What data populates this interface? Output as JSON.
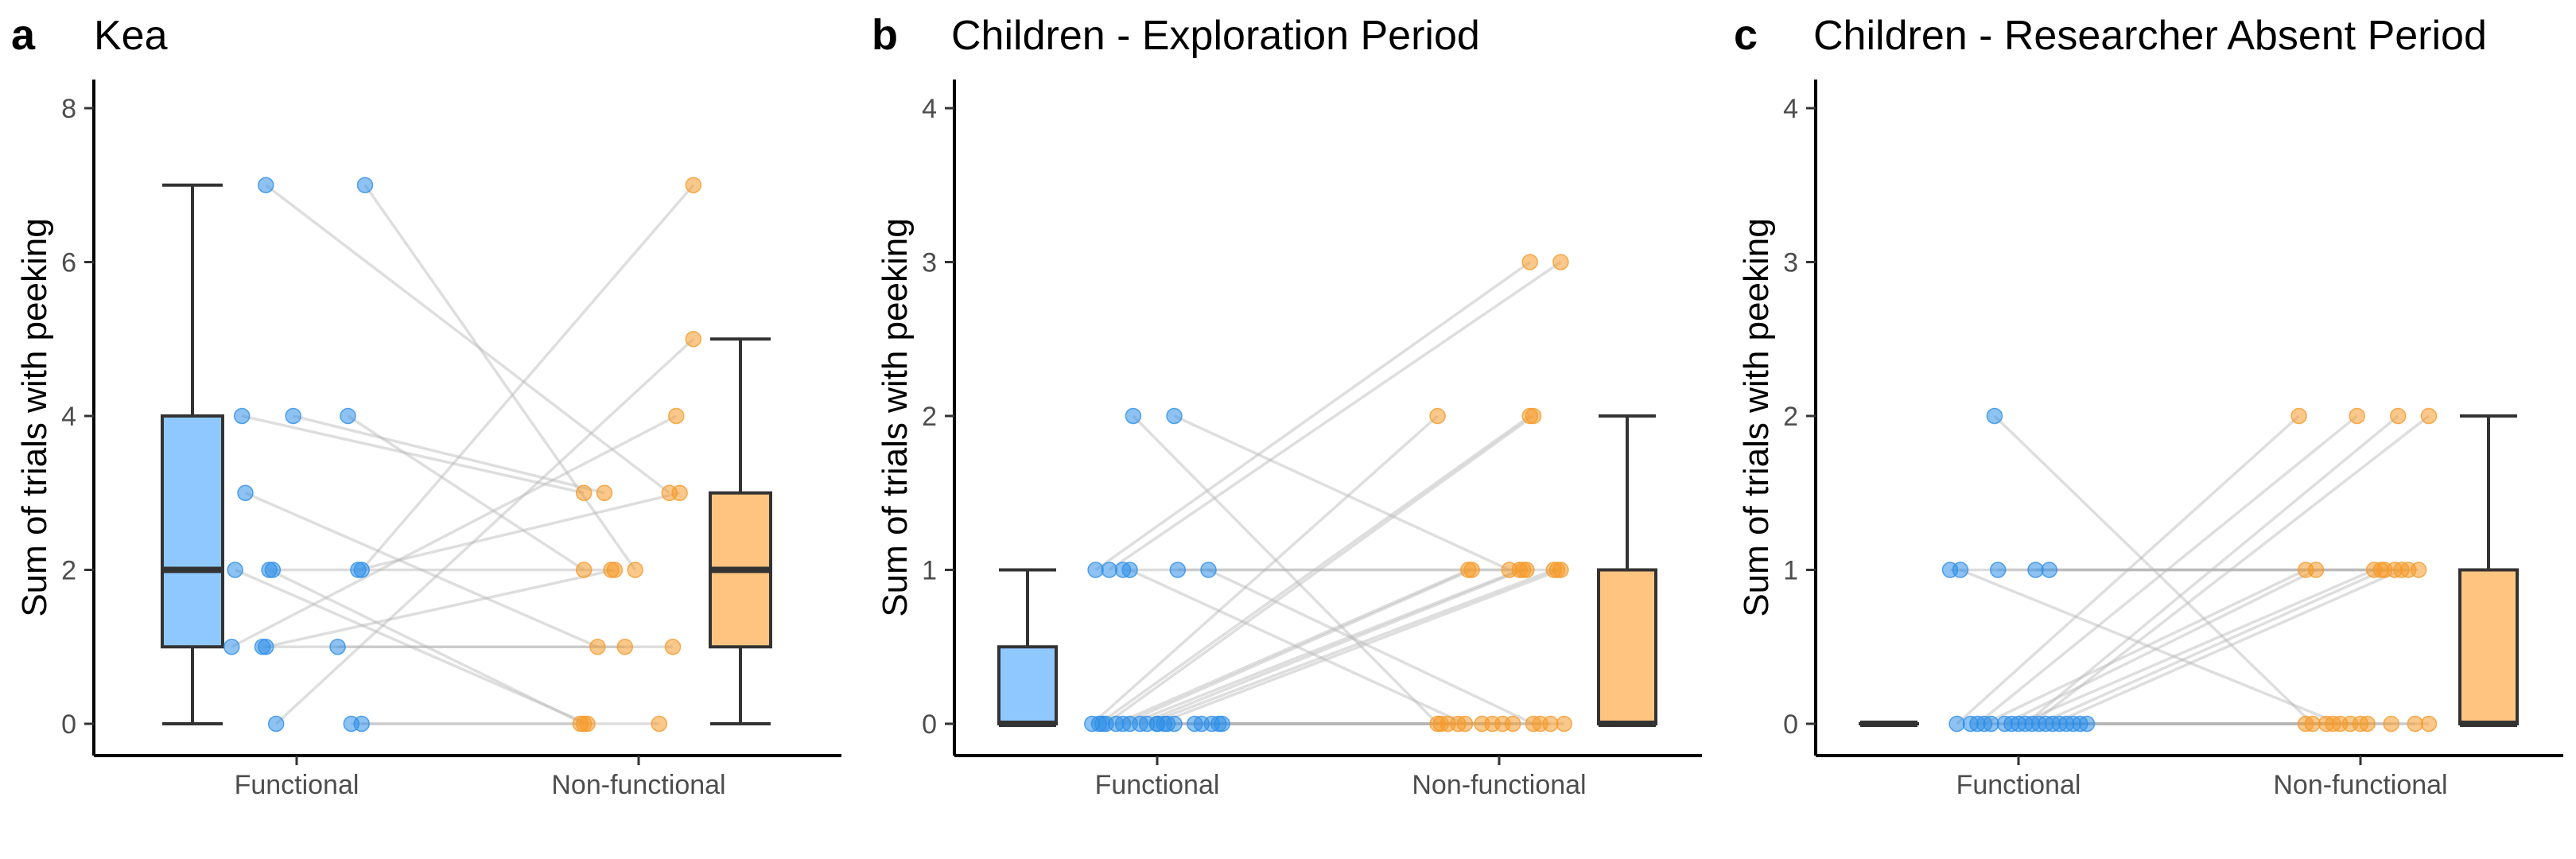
{
  "colors": {
    "functional_point": "#2f8fe8",
    "functional_box": "#8fc8ff",
    "nonfunctional_point": "#f59a2a",
    "nonfunctional_box": "#ffc580",
    "pair_line": "#b5b5b5"
  },
  "chart_data": [
    {
      "type": "box+scatter (paired)",
      "letter": "a",
      "title": "Kea",
      "ylabel": "Sum of trials with peeking",
      "xlabel": "",
      "categories": [
        "Functional",
        "Non-functional"
      ],
      "ylim": [
        0,
        8
      ],
      "yticks": [
        0,
        2,
        4,
        6,
        8
      ],
      "grid": false,
      "boxes": [
        {
          "category": "Functional",
          "min": 0,
          "q1": 1,
          "median": 2,
          "q3": 4,
          "max": 7
        },
        {
          "category": "Non-functional",
          "min": 0,
          "q1": 1,
          "median": 2,
          "q3": 3,
          "max": 5
        }
      ],
      "pairs": [
        {
          "functional": 7,
          "nonfunctional": 3,
          "f_jitter": -0.09,
          "n_jitter": 0.09
        },
        {
          "functional": 7,
          "nonfunctional": 2,
          "f_jitter": 0.2,
          "n_jitter": -0.01
        },
        {
          "functional": 4,
          "nonfunctional": 3,
          "f_jitter": -0.16,
          "n_jitter": -0.16
        },
        {
          "functional": 4,
          "nonfunctional": 3,
          "f_jitter": -0.01,
          "n_jitter": -0.1
        },
        {
          "functional": 4,
          "nonfunctional": 2,
          "f_jitter": 0.15,
          "n_jitter": -0.16
        },
        {
          "functional": 3,
          "nonfunctional": 1,
          "f_jitter": -0.15,
          "n_jitter": -0.12
        },
        {
          "functional": 2,
          "nonfunctional": 0,
          "f_jitter": -0.18,
          "n_jitter": -0.15
        },
        {
          "functional": 2,
          "nonfunctional": 0,
          "f_jitter": -0.08,
          "n_jitter": -0.16
        },
        {
          "functional": 2,
          "nonfunctional": 2,
          "f_jitter": -0.07,
          "n_jitter": -0.08
        },
        {
          "functional": 2,
          "nonfunctional": 7,
          "f_jitter": 0.19,
          "n_jitter": 0.16
        },
        {
          "functional": 1,
          "nonfunctional": 4,
          "f_jitter": -0.19,
          "n_jitter": 0.11
        },
        {
          "functional": 1,
          "nonfunctional": 2,
          "f_jitter": -0.09,
          "n_jitter": -0.07
        },
        {
          "functional": 1,
          "nonfunctional": 1,
          "f_jitter": -0.1,
          "n_jitter": 0.1
        },
        {
          "functional": 1,
          "nonfunctional": 1,
          "f_jitter": 0.12,
          "n_jitter": -0.04
        },
        {
          "functional": 0,
          "nonfunctional": 5,
          "f_jitter": -0.06,
          "n_jitter": 0.16
        },
        {
          "functional": 0,
          "nonfunctional": 0,
          "f_jitter": 0.16,
          "n_jitter": -0.17
        },
        {
          "functional": 0,
          "nonfunctional": 0,
          "f_jitter": 0.19,
          "n_jitter": 0.06
        },
        {
          "functional": 2,
          "nonfunctional": 3,
          "f_jitter": 0.18,
          "n_jitter": 0.12
        }
      ]
    },
    {
      "type": "box+scatter (paired)",
      "letter": "b",
      "title": "Children - Exploration Period",
      "ylabel": "Sum of trials with peeking",
      "xlabel": "",
      "categories": [
        "Functional",
        "Non-functional"
      ],
      "ylim": [
        0,
        4
      ],
      "yticks": [
        0,
        1,
        2,
        3,
        4
      ],
      "grid": false,
      "boxes": [
        {
          "category": "Functional",
          "min": 0,
          "q1": 0,
          "median": 0,
          "q3": 0.5,
          "max": 1
        },
        {
          "category": "Non-functional",
          "min": 0,
          "q1": 0,
          "median": 0,
          "q3": 1,
          "max": 2
        }
      ],
      "pairs": [
        {
          "functional": 2,
          "nonfunctional": 0,
          "f_jitter": -0.07,
          "n_jitter": -0.18
        },
        {
          "functional": 2,
          "nonfunctional": 1,
          "f_jitter": 0.05,
          "n_jitter": 0.03
        },
        {
          "functional": 1,
          "nonfunctional": 3,
          "f_jitter": -0.18,
          "n_jitter": 0.09
        },
        {
          "functional": 1,
          "nonfunctional": 3,
          "f_jitter": -0.14,
          "n_jitter": 0.18
        },
        {
          "functional": 1,
          "nonfunctional": 1,
          "f_jitter": -0.1,
          "n_jitter": 0.08
        },
        {
          "functional": 1,
          "nonfunctional": 0,
          "f_jitter": -0.08,
          "n_jitter": -0.1
        },
        {
          "functional": 1,
          "nonfunctional": 1,
          "f_jitter": 0.06,
          "n_jitter": 0.17
        },
        {
          "functional": 1,
          "nonfunctional": 0,
          "f_jitter": 0.15,
          "n_jitter": 0.1
        },
        {
          "functional": 0,
          "nonfunctional": 2,
          "f_jitter": -0.19,
          "n_jitter": -0.18
        },
        {
          "functional": 0,
          "nonfunctional": 2,
          "f_jitter": -0.17,
          "n_jitter": 0.09
        },
        {
          "functional": 0,
          "nonfunctional": 2,
          "f_jitter": -0.15,
          "n_jitter": 0.1
        },
        {
          "functional": 0,
          "nonfunctional": 1,
          "f_jitter": -0.12,
          "n_jitter": -0.09
        },
        {
          "functional": 0,
          "nonfunctional": 1,
          "f_jitter": -0.1,
          "n_jitter": -0.08
        },
        {
          "functional": 0,
          "nonfunctional": 1,
          "f_jitter": -0.08,
          "n_jitter": 0.06
        },
        {
          "functional": 0,
          "nonfunctional": 1,
          "f_jitter": -0.05,
          "n_jitter": 0.07
        },
        {
          "functional": 0,
          "nonfunctional": 1,
          "f_jitter": -0.03,
          "n_jitter": 0.16
        },
        {
          "functional": 0,
          "nonfunctional": 1,
          "f_jitter": 0.0,
          "n_jitter": 0.18
        },
        {
          "functional": 0,
          "nonfunctional": 0,
          "f_jitter": 0.02,
          "n_jitter": -0.17
        },
        {
          "functional": 0,
          "nonfunctional": 0,
          "f_jitter": 0.03,
          "n_jitter": -0.15
        },
        {
          "functional": 0,
          "nonfunctional": 0,
          "f_jitter": 0.05,
          "n_jitter": -0.12
        },
        {
          "functional": 0,
          "nonfunctional": 0,
          "f_jitter": 0.11,
          "n_jitter": -0.05
        },
        {
          "functional": 0,
          "nonfunctional": 0,
          "f_jitter": 0.13,
          "n_jitter": -0.02
        },
        {
          "functional": 0,
          "nonfunctional": 0,
          "f_jitter": 0.16,
          "n_jitter": 0.01
        },
        {
          "functional": 0,
          "nonfunctional": 0,
          "f_jitter": 0.18,
          "n_jitter": 0.04
        },
        {
          "functional": 0,
          "nonfunctional": 0,
          "f_jitter": 0.19,
          "n_jitter": 0.12
        },
        {
          "functional": 0,
          "nonfunctional": 0,
          "f_jitter": -0.16,
          "n_jitter": 0.15
        },
        {
          "functional": 0,
          "nonfunctional": 0,
          "f_jitter": 0.0,
          "n_jitter": 0.19
        }
      ]
    },
    {
      "type": "box+scatter (paired)",
      "letter": "c",
      "title": "Children - Researcher Absent Period",
      "ylabel": "Sum of trials with peeking",
      "xlabel": "",
      "categories": [
        "Functional",
        "Non-functional"
      ],
      "ylim": [
        0,
        4
      ],
      "yticks": [
        0,
        1,
        2,
        3,
        4
      ],
      "grid": false,
      "boxes": [
        {
          "category": "Functional",
          "min": 0,
          "q1": 0,
          "median": 0,
          "q3": 0,
          "max": 0
        },
        {
          "category": "Non-functional",
          "min": 0,
          "q1": 0,
          "median": 0,
          "q3": 1,
          "max": 2
        }
      ],
      "pairs": [
        {
          "functional": 2,
          "nonfunctional": 0,
          "f_jitter": -0.07,
          "n_jitter": -0.14
        },
        {
          "functional": 1,
          "nonfunctional": 1,
          "f_jitter": -0.2,
          "n_jitter": 0.1
        },
        {
          "functional": 1,
          "nonfunctional": 0,
          "f_jitter": -0.17,
          "n_jitter": -0.06
        },
        {
          "functional": 1,
          "nonfunctional": 1,
          "f_jitter": -0.06,
          "n_jitter": 0.14
        },
        {
          "functional": 1,
          "nonfunctional": 1,
          "f_jitter": 0.05,
          "n_jitter": 0.17
        },
        {
          "functional": 1,
          "nonfunctional": 1,
          "f_jitter": 0.09,
          "n_jitter": 0.06
        },
        {
          "functional": 0,
          "nonfunctional": 2,
          "f_jitter": -0.18,
          "n_jitter": -0.18
        },
        {
          "functional": 0,
          "nonfunctional": 2,
          "f_jitter": -0.12,
          "n_jitter": -0.01
        },
        {
          "functional": 0,
          "nonfunctional": 2,
          "f_jitter": 0.02,
          "n_jitter": 0.11
        },
        {
          "functional": 0,
          "nonfunctional": 2,
          "f_jitter": 0.04,
          "n_jitter": 0.2
        },
        {
          "functional": 0,
          "nonfunctional": 1,
          "f_jitter": -0.1,
          "n_jitter": -0.16
        },
        {
          "functional": 0,
          "nonfunctional": 1,
          "f_jitter": -0.04,
          "n_jitter": -0.13
        },
        {
          "functional": 0,
          "nonfunctional": 1,
          "f_jitter": 0.0,
          "n_jitter": 0.04
        },
        {
          "functional": 0,
          "nonfunctional": 1,
          "f_jitter": 0.06,
          "n_jitter": 0.07
        },
        {
          "functional": 0,
          "nonfunctional": 1,
          "f_jitter": 0.1,
          "n_jitter": 0.12
        },
        {
          "functional": 0,
          "nonfunctional": 0,
          "f_jitter": 0.12,
          "n_jitter": -0.16
        },
        {
          "functional": 0,
          "nonfunctional": 0,
          "f_jitter": 0.14,
          "n_jitter": -0.1
        },
        {
          "functional": 0,
          "nonfunctional": 0,
          "f_jitter": 0.16,
          "n_jitter": -0.08
        },
        {
          "functional": 0,
          "nonfunctional": 0,
          "f_jitter": 0.18,
          "n_jitter": -0.03
        },
        {
          "functional": 0,
          "nonfunctional": 0,
          "f_jitter": -0.14,
          "n_jitter": 0.0
        },
        {
          "functional": 0,
          "nonfunctional": 0,
          "f_jitter": -0.02,
          "n_jitter": 0.02
        },
        {
          "functional": 0,
          "nonfunctional": 0,
          "f_jitter": 0.08,
          "n_jitter": 0.09
        },
        {
          "functional": 0,
          "nonfunctional": 0,
          "f_jitter": 0.2,
          "n_jitter": 0.16
        },
        {
          "functional": 0,
          "nonfunctional": 0,
          "f_jitter": -0.08,
          "n_jitter": 0.2
        }
      ]
    }
  ]
}
